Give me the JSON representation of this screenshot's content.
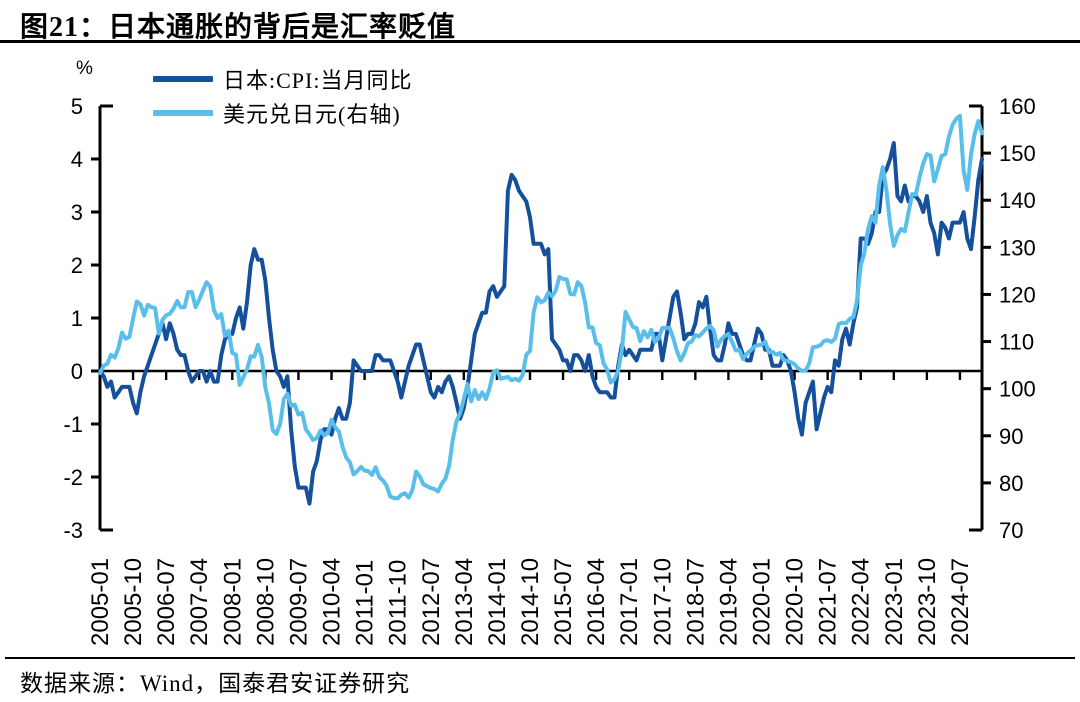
{
  "page": {
    "title": "图21：日本通胀的背后是汇率贬值",
    "source": "数据来源：Wind，国泰君安证券研究"
  },
  "chart_data": {
    "type": "line",
    "title": "图21：日本通胀的背后是汇率贬值",
    "unit_label": "%",
    "grid": false,
    "legend_position": "top-left",
    "x_start": "2005-01",
    "x_end": "2025-01",
    "x_tick_interval_months": 9,
    "x_tick_labels": [
      "2005-01",
      "2005-10",
      "2006-07",
      "2007-04",
      "2008-01",
      "2008-10",
      "2009-07",
      "2010-04",
      "2011-01",
      "2011-10",
      "2012-07",
      "2013-04",
      "2014-01",
      "2014-10",
      "2015-07",
      "2016-04",
      "2017-01",
      "2017-10",
      "2018-07",
      "2019-04",
      "2020-01",
      "2020-10",
      "2021-07",
      "2022-04",
      "2023-01",
      "2023-10",
      "2024-07"
    ],
    "left_axis": {
      "range": [
        -3,
        5
      ],
      "ticks": [
        5,
        4,
        3,
        2,
        1,
        0,
        -1,
        -2,
        -3
      ]
    },
    "right_axis": {
      "range": [
        70,
        160
      ],
      "ticks": [
        160,
        150,
        140,
        130,
        120,
        110,
        100,
        90,
        80,
        70
      ]
    },
    "series": [
      {
        "name": "日本:CPI:当月同比",
        "axis": "left",
        "color": "#14509B",
        "values": [
          0.0,
          -0.1,
          -0.3,
          -0.2,
          -0.5,
          -0.4,
          -0.3,
          -0.3,
          -0.3,
          -0.6,
          -0.8,
          -0.4,
          -0.1,
          0.1,
          0.3,
          0.5,
          0.7,
          0.9,
          0.6,
          0.9,
          0.7,
          0.4,
          0.3,
          0.3,
          0.0,
          -0.2,
          -0.1,
          0.0,
          0.0,
          -0.2,
          0.0,
          -0.2,
          -0.2,
          0.3,
          0.6,
          0.7,
          0.7,
          1.0,
          1.2,
          0.8,
          1.3,
          2.0,
          2.3,
          2.1,
          2.1,
          1.7,
          1.0,
          0.4,
          0.0,
          -0.1,
          -0.3,
          -0.1,
          -1.1,
          -1.8,
          -2.2,
          -2.2,
          -2.2,
          -2.5,
          -1.9,
          -1.7,
          -1.3,
          -1.1,
          -1.1,
          -1.2,
          -0.9,
          -0.7,
          -0.9,
          -0.9,
          -0.6,
          0.2,
          0.1,
          0.0,
          0.0,
          0.0,
          0.0,
          0.3,
          0.3,
          0.2,
          0.2,
          0.2,
          0.0,
          -0.2,
          -0.5,
          -0.2,
          0.1,
          0.3,
          0.5,
          0.5,
          0.2,
          -0.1,
          -0.4,
          -0.5,
          -0.3,
          -0.4,
          -0.2,
          -0.1,
          -0.3,
          -0.6,
          -0.9,
          -0.7,
          -0.3,
          0.2,
          0.7,
          0.9,
          1.1,
          1.1,
          1.5,
          1.6,
          1.4,
          1.5,
          1.6,
          3.4,
          3.7,
          3.6,
          3.4,
          3.3,
          3.2,
          2.9,
          2.4,
          2.4,
          2.4,
          2.2,
          2.3,
          0.6,
          0.5,
          0.4,
          0.2,
          0.2,
          0.0,
          0.3,
          0.3,
          0.2,
          0.0,
          0.3,
          -0.1,
          -0.3,
          -0.4,
          -0.4,
          -0.4,
          -0.5,
          -0.5,
          0.1,
          0.5,
          0.3,
          0.4,
          0.3,
          0.2,
          0.4,
          0.4,
          0.4,
          0.4,
          0.7,
          0.7,
          0.2,
          0.6,
          1.0,
          1.4,
          1.5,
          1.1,
          0.6,
          0.7,
          0.7,
          0.9,
          1.3,
          1.2,
          1.4,
          0.8,
          0.3,
          0.2,
          0.2,
          0.5,
          0.9,
          0.7,
          0.7,
          0.5,
          0.3,
          0.2,
          0.2,
          0.5,
          0.8,
          0.7,
          0.4,
          0.4,
          0.1,
          0.1,
          0.1,
          0.3,
          0.2,
          0.0,
          -0.4,
          -0.9,
          -1.2,
          -0.6,
          -0.4,
          -0.2,
          -1.1,
          -0.8,
          -0.5,
          -0.3,
          -0.4,
          0.2,
          0.1,
          0.6,
          0.8,
          0.5,
          0.9,
          1.2,
          2.5,
          2.5,
          2.4,
          2.6,
          3.0,
          3.0,
          3.7,
          3.8,
          4.0,
          4.3,
          3.3,
          3.2,
          3.5,
          3.2,
          3.3,
          3.3,
          3.2,
          3.0,
          3.3,
          2.8,
          2.6,
          2.2,
          2.8,
          2.7,
          2.5,
          2.8,
          2.8,
          2.8,
          3.0,
          2.5,
          2.3,
          2.9,
          3.6,
          4.0
        ]
      },
      {
        "name": "美元兑日元(右轴)",
        "axis": "right",
        "color": "#5ABEEB",
        "values": [
          103.3,
          104.9,
          105.3,
          107.2,
          106.6,
          108.6,
          111.9,
          110.6,
          111.0,
          114.9,
          118.5,
          117.9,
          115.5,
          117.8,
          117.3,
          117.1,
          111.7,
          114.6,
          115.6,
          115.9,
          117.0,
          118.6,
          117.3,
          117.3,
          120.5,
          120.5,
          117.3,
          118.9,
          120.8,
          122.6,
          121.6,
          116.7,
          115.0,
          115.8,
          111.2,
          112.3,
          107.6,
          107.2,
          100.8,
          102.4,
          104.1,
          106.9,
          106.8,
          109.3,
          106.7,
          100.2,
          96.9,
          91.2,
          90.4,
          92.5,
          97.8,
          98.9,
          96.4,
          96.6,
          94.5,
          94.9,
          91.4,
          90.3,
          89.1,
          89.5,
          91.1,
          90.1,
          90.6,
          93.4,
          91.8,
          90.9,
          87.7,
          85.4,
          84.4,
          81.8,
          82.5,
          83.4,
          82.6,
          82.5,
          81.7,
          83.3,
          81.2,
          80.5,
          79.4,
          77.1,
          76.8,
          76.7,
          77.5,
          77.8,
          76.9,
          78.5,
          82.4,
          81.4,
          79.7,
          79.3,
          78.9,
          78.7,
          78.2,
          79.8,
          80.9,
          83.6,
          89.2,
          93.1,
          94.8,
          97.8,
          101.0,
          97.3,
          99.7,
          97.8,
          99.2,
          97.8,
          100.0,
          103.5,
          103.9,
          102.1,
          102.3,
          102.5,
          101.8,
          102.1,
          101.7,
          102.9,
          107.2,
          108.0,
          116.2,
          119.4,
          118.3,
          118.8,
          120.4,
          119.6,
          120.8,
          123.7,
          123.3,
          123.2,
          120.1,
          120.0,
          122.6,
          121.8,
          118.3,
          113.0,
          113.0,
          109.7,
          109.2,
          105.4,
          104.1,
          101.3,
          102.0,
          103.8,
          108.3,
          116.3,
          114.7,
          113.1,
          112.9,
          110.1,
          112.2,
          110.9,
          112.5,
          109.9,
          110.7,
          112.9,
          112.9,
          112.9,
          110.7,
          107.9,
          106.0,
          107.5,
          109.7,
          110.0,
          111.4,
          111.1,
          111.9,
          112.8,
          113.3,
          112.4,
          108.9,
          110.4,
          111.2,
          111.6,
          109.9,
          108.1,
          108.2,
          106.3,
          107.4,
          108.1,
          108.9,
          109.2,
          109.3,
          110.0,
          107.7,
          107.8,
          107.2,
          107.6,
          106.1,
          105.9,
          105.6,
          105.2,
          104.3,
          103.8,
          103.8,
          105.4,
          108.8,
          108.9,
          109.2,
          110.1,
          110.3,
          109.9,
          110.6,
          113.7,
          114.0,
          113.9,
          114.8,
          115.2,
          118.7,
          126.1,
          128.8,
          133.9,
          136.6,
          135.2,
          143.1,
          147.0,
          142.2,
          134.9,
          130.3,
          132.6,
          133.9,
          133.4,
          137.4,
          141.3,
          141.2,
          144.8,
          147.8,
          149.8,
          149.5,
          144.0,
          146.6,
          149.4,
          149.8,
          153.5,
          156.0,
          157.3,
          157.9,
          146.3,
          142.2,
          149.7,
          154.0,
          156.8,
          154.2
        ]
      }
    ]
  }
}
